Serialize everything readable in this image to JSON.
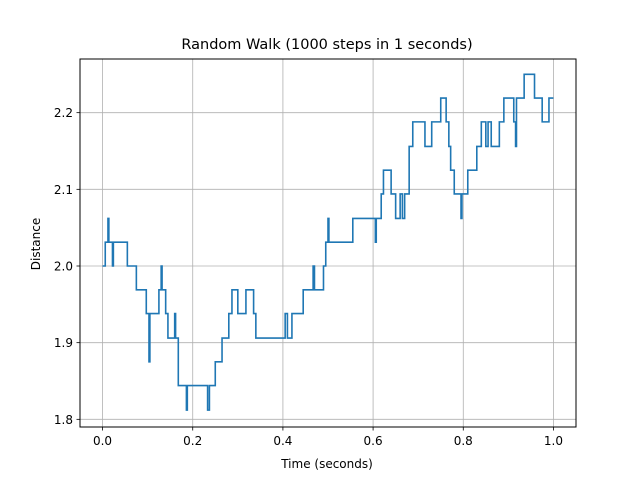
{
  "chart_data": {
    "type": "line",
    "title": "Random Walk (1000 steps in 1 seconds)",
    "xlabel": "Time (seconds)",
    "ylabel": "Distance",
    "xlim": [
      -0.05,
      1.05
    ],
    "ylim": [
      1.79,
      2.27
    ],
    "xticks": [
      0.0,
      0.2,
      0.4,
      0.6,
      0.8,
      1.0
    ],
    "xtick_labels": [
      "0.0",
      "0.2",
      "0.4",
      "0.6",
      "0.8",
      "1.0"
    ],
    "yticks": [
      1.8,
      1.9,
      2.0,
      2.1,
      2.2
    ],
    "ytick_labels": [
      "1.8",
      "1.9",
      "2.0",
      "2.1",
      "2.2"
    ],
    "grid": true,
    "line_color": "#1f77b4",
    "series": [
      {
        "name": "",
        "points": [
          [
            0.0,
            2.0
          ],
          [
            0.006,
            2.0
          ],
          [
            0.006,
            2.031
          ],
          [
            0.012,
            2.031
          ],
          [
            0.012,
            2.062
          ],
          [
            0.014,
            2.062
          ],
          [
            0.014,
            2.031
          ],
          [
            0.022,
            2.031
          ],
          [
            0.022,
            2.0
          ],
          [
            0.024,
            2.0
          ],
          [
            0.024,
            2.031
          ],
          [
            0.055,
            2.031
          ],
          [
            0.055,
            2.0
          ],
          [
            0.075,
            2.0
          ],
          [
            0.075,
            1.969
          ],
          [
            0.097,
            1.969
          ],
          [
            0.097,
            1.938
          ],
          [
            0.103,
            1.938
          ],
          [
            0.103,
            1.875
          ],
          [
            0.105,
            1.875
          ],
          [
            0.105,
            1.938
          ],
          [
            0.125,
            1.938
          ],
          [
            0.125,
            1.969
          ],
          [
            0.13,
            1.969
          ],
          [
            0.13,
            2.0
          ],
          [
            0.132,
            2.0
          ],
          [
            0.132,
            1.969
          ],
          [
            0.14,
            1.969
          ],
          [
            0.14,
            1.938
          ],
          [
            0.145,
            1.938
          ],
          [
            0.145,
            1.906
          ],
          [
            0.16,
            1.906
          ],
          [
            0.16,
            1.938
          ],
          [
            0.162,
            1.938
          ],
          [
            0.162,
            1.906
          ],
          [
            0.168,
            1.906
          ],
          [
            0.168,
            1.844
          ],
          [
            0.186,
            1.844
          ],
          [
            0.186,
            1.812
          ],
          [
            0.188,
            1.812
          ],
          [
            0.188,
            1.844
          ],
          [
            0.233,
            1.844
          ],
          [
            0.233,
            1.812
          ],
          [
            0.237,
            1.812
          ],
          [
            0.237,
            1.844
          ],
          [
            0.25,
            1.844
          ],
          [
            0.25,
            1.875
          ],
          [
            0.265,
            1.875
          ],
          [
            0.265,
            1.906
          ],
          [
            0.28,
            1.906
          ],
          [
            0.28,
            1.938
          ],
          [
            0.287,
            1.938
          ],
          [
            0.287,
            1.969
          ],
          [
            0.3,
            1.969
          ],
          [
            0.3,
            1.938
          ],
          [
            0.318,
            1.938
          ],
          [
            0.318,
            1.969
          ],
          [
            0.335,
            1.969
          ],
          [
            0.335,
            1.938
          ],
          [
            0.34,
            1.938
          ],
          [
            0.34,
            1.906
          ],
          [
            0.405,
            1.906
          ],
          [
            0.405,
            1.938
          ],
          [
            0.41,
            1.938
          ],
          [
            0.41,
            1.906
          ],
          [
            0.42,
            1.906
          ],
          [
            0.42,
            1.938
          ],
          [
            0.445,
            1.938
          ],
          [
            0.445,
            1.969
          ],
          [
            0.467,
            1.969
          ],
          [
            0.467,
            2.0
          ],
          [
            0.47,
            2.0
          ],
          [
            0.47,
            1.969
          ],
          [
            0.49,
            1.969
          ],
          [
            0.49,
            2.0
          ],
          [
            0.495,
            2.0
          ],
          [
            0.495,
            2.031
          ],
          [
            0.5,
            2.031
          ],
          [
            0.5,
            2.062
          ],
          [
            0.502,
            2.062
          ],
          [
            0.502,
            2.031
          ],
          [
            0.555,
            2.031
          ],
          [
            0.555,
            2.062
          ],
          [
            0.605,
            2.062
          ],
          [
            0.605,
            2.031
          ],
          [
            0.607,
            2.031
          ],
          [
            0.607,
            2.062
          ],
          [
            0.618,
            2.062
          ],
          [
            0.618,
            2.094
          ],
          [
            0.623,
            2.094
          ],
          [
            0.623,
            2.125
          ],
          [
            0.64,
            2.125
          ],
          [
            0.64,
            2.094
          ],
          [
            0.65,
            2.094
          ],
          [
            0.65,
            2.062
          ],
          [
            0.66,
            2.062
          ],
          [
            0.66,
            2.094
          ],
          [
            0.665,
            2.094
          ],
          [
            0.665,
            2.062
          ],
          [
            0.67,
            2.062
          ],
          [
            0.67,
            2.094
          ],
          [
            0.68,
            2.094
          ],
          [
            0.68,
            2.156
          ],
          [
            0.688,
            2.156
          ],
          [
            0.688,
            2.188
          ],
          [
            0.715,
            2.188
          ],
          [
            0.715,
            2.156
          ],
          [
            0.73,
            2.156
          ],
          [
            0.73,
            2.188
          ],
          [
            0.75,
            2.188
          ],
          [
            0.75,
            2.219
          ],
          [
            0.762,
            2.219
          ],
          [
            0.762,
            2.188
          ],
          [
            0.768,
            2.188
          ],
          [
            0.768,
            2.156
          ],
          [
            0.772,
            2.156
          ],
          [
            0.772,
            2.125
          ],
          [
            0.78,
            2.125
          ],
          [
            0.78,
            2.094
          ],
          [
            0.795,
            2.094
          ],
          [
            0.795,
            2.062
          ],
          [
            0.797,
            2.062
          ],
          [
            0.797,
            2.094
          ],
          [
            0.81,
            2.094
          ],
          [
            0.81,
            2.125
          ],
          [
            0.83,
            2.125
          ],
          [
            0.83,
            2.156
          ],
          [
            0.84,
            2.156
          ],
          [
            0.84,
            2.188
          ],
          [
            0.85,
            2.188
          ],
          [
            0.85,
            2.156
          ],
          [
            0.855,
            2.156
          ],
          [
            0.855,
            2.188
          ],
          [
            0.862,
            2.188
          ],
          [
            0.862,
            2.156
          ],
          [
            0.88,
            2.156
          ],
          [
            0.88,
            2.188
          ],
          [
            0.89,
            2.188
          ],
          [
            0.89,
            2.219
          ],
          [
            0.912,
            2.219
          ],
          [
            0.912,
            2.188
          ],
          [
            0.916,
            2.188
          ],
          [
            0.916,
            2.156
          ],
          [
            0.918,
            2.156
          ],
          [
            0.918,
            2.219
          ],
          [
            0.935,
            2.219
          ],
          [
            0.935,
            2.25
          ],
          [
            0.958,
            2.25
          ],
          [
            0.958,
            2.219
          ],
          [
            0.975,
            2.219
          ],
          [
            0.975,
            2.188
          ],
          [
            0.99,
            2.188
          ],
          [
            0.99,
            2.219
          ],
          [
            1.0,
            2.219
          ]
        ]
      }
    ]
  }
}
